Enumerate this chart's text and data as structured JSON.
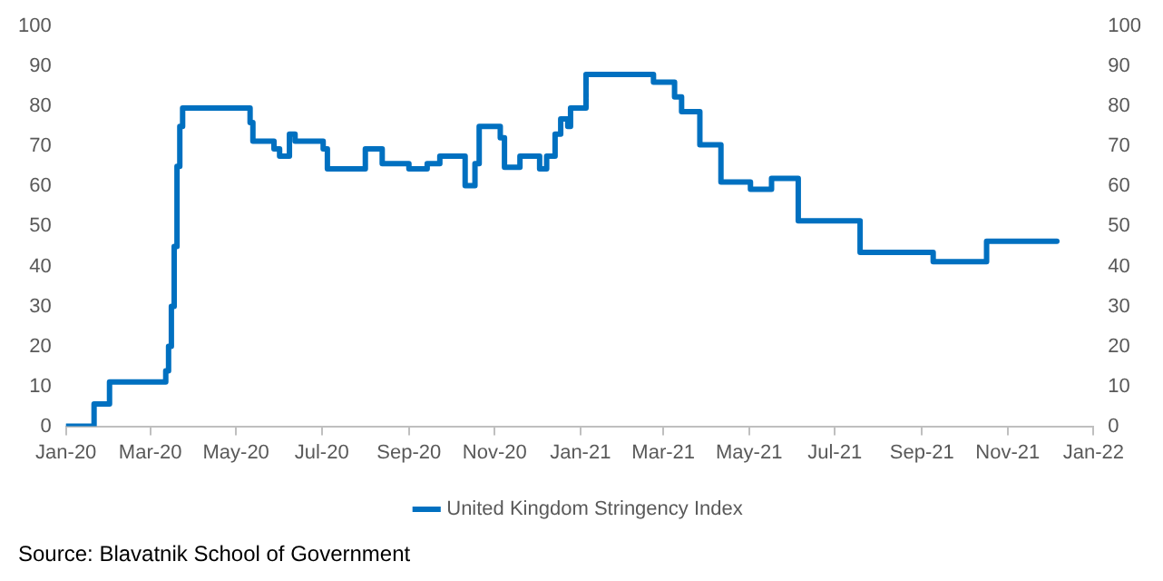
{
  "chart_data": {
    "type": "step",
    "x": [
      "2020-01-01",
      "2020-01-21",
      "2020-02-01",
      "2020-03-12",
      "2020-03-14",
      "2020-03-16",
      "2020-03-18",
      "2020-03-20",
      "2020-03-22",
      "2020-03-24",
      "2020-05-11",
      "2020-05-13",
      "2020-05-28",
      "2020-06-01",
      "2020-06-08",
      "2020-06-12",
      "2020-07-02",
      "2020-07-05",
      "2020-08-01",
      "2020-08-13",
      "2020-09-01",
      "2020-09-14",
      "2020-09-23",
      "2020-10-11",
      "2020-10-18",
      "2020-10-21",
      "2020-10-23",
      "2020-11-05",
      "2020-11-08",
      "2020-11-19",
      "2020-12-03",
      "2020-12-08",
      "2020-12-14",
      "2020-12-18",
      "2020-12-23",
      "2020-12-25",
      "2020-12-26",
      "2021-01-05",
      "2021-02-22",
      "2021-03-09",
      "2021-03-14",
      "2021-03-27",
      "2021-04-11",
      "2021-05-02",
      "2021-05-17",
      "2021-06-05",
      "2021-07-19",
      "2021-09-09",
      "2021-10-17",
      "2021-12-06"
    ],
    "series": [
      {
        "name": "United Kingdom Stringency Index",
        "color": "#0070c0",
        "values": [
          0,
          5.6,
          11.1,
          13.9,
          20,
          30,
          45,
          65,
          75,
          79.6,
          76,
          71.3,
          69.4,
          67.6,
          73.1,
          71.3,
          69.4,
          64.4,
          69.4,
          65.7,
          64.4,
          65.7,
          67.6,
          60.2,
          65.7,
          75,
          75,
          72.2,
          64.8,
          67.6,
          64.4,
          67.6,
          73.1,
          76.9,
          75,
          79.6,
          79.6,
          88,
          86.1,
          82.4,
          78.7,
          70.4,
          61.1,
          59.3,
          62,
          51.4,
          43.5,
          41.2,
          46.3,
          46.3
        ]
      }
    ],
    "xlim": [
      "2020-01-01",
      "2022-01-01"
    ],
    "xticks": [
      {
        "value": "2020-01-01",
        "label": "Jan-20"
      },
      {
        "value": "2020-03-01",
        "label": "Mar-20"
      },
      {
        "value": "2020-05-01",
        "label": "May-20"
      },
      {
        "value": "2020-07-01",
        "label": "Jul-20"
      },
      {
        "value": "2020-09-01",
        "label": "Sep-20"
      },
      {
        "value": "2020-11-01",
        "label": "Nov-20"
      },
      {
        "value": "2021-01-01",
        "label": "Jan-21"
      },
      {
        "value": "2021-03-01",
        "label": "Mar-21"
      },
      {
        "value": "2021-05-01",
        "label": "May-21"
      },
      {
        "value": "2021-07-01",
        "label": "Jul-21"
      },
      {
        "value": "2021-09-01",
        "label": "Sep-21"
      },
      {
        "value": "2021-11-01",
        "label": "Nov-21"
      },
      {
        "value": "2022-01-01",
        "label": "Jan-22"
      }
    ],
    "ylim": [
      0,
      100
    ],
    "yticks": [
      0,
      10,
      20,
      30,
      40,
      50,
      60,
      70,
      80,
      90,
      100
    ],
    "y2lim": [
      0,
      100
    ],
    "y2ticks": [
      0,
      10,
      20,
      30,
      40,
      50,
      60,
      70,
      80,
      90,
      100
    ],
    "grid": false,
    "legend": "bottom",
    "marker": "none",
    "line_style": "solid",
    "annotations": [
      "Source:  Blavatnik School of Government"
    ]
  }
}
